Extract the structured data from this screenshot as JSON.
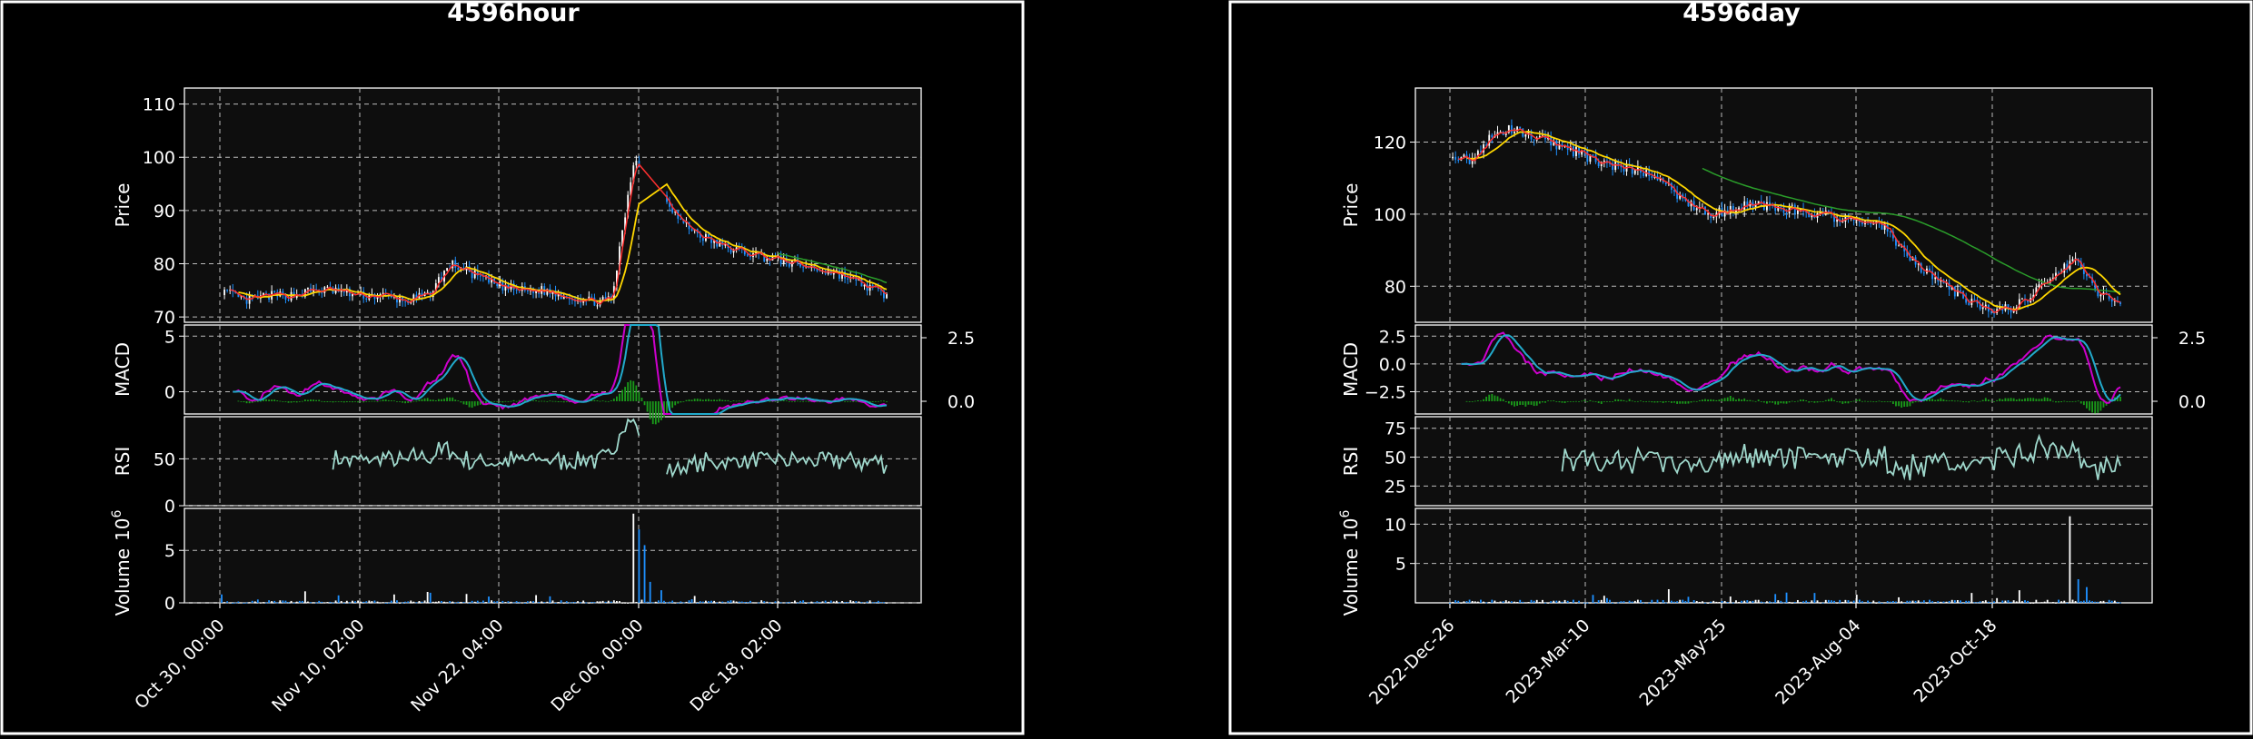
{
  "charts": {
    "left": {
      "title": "4596hour",
      "price_label": "Price",
      "macd_label": "MACD",
      "rsi_label": "RSI",
      "volume_label": "Volume",
      "volume_exp": "10",
      "volume_exp_sup": "6",
      "price_ticks": [
        "70",
        "80",
        "90",
        "100",
        "110"
      ],
      "macd_ticks": [
        "0",
        "5"
      ],
      "macd_right_ticks": [
        "0.0",
        "2.5"
      ],
      "rsi_ticks": [
        "0",
        "50"
      ],
      "volume_ticks": [
        "0",
        "5"
      ],
      "x_ticks": [
        "Oct 30, 00:00",
        "Nov 10, 02:00",
        "Nov 22, 04:00",
        "Dec 06, 00:00",
        "Dec 18, 02:00"
      ]
    },
    "right": {
      "title": "4596day",
      "price_label": "Price",
      "macd_label": "MACD",
      "rsi_label": "RSI",
      "volume_label": "Volume",
      "volume_exp": "10",
      "volume_exp_sup": "6",
      "price_ticks": [
        "80",
        "100",
        "120"
      ],
      "macd_ticks": [
        "−2.5",
        "0.0",
        "2.5"
      ],
      "macd_right_ticks": [
        "0.0",
        "2.5"
      ],
      "rsi_ticks": [
        "25",
        "50",
        "75"
      ],
      "volume_ticks": [
        "5",
        "10"
      ],
      "x_ticks": [
        "2022-Dec-26",
        "2023-Mar-10",
        "2023-May-25",
        "2023-Aug-04",
        "2023-Oct-18"
      ]
    }
  },
  "chart_data": [
    {
      "type": "candlestick",
      "title": "4596hour",
      "ylabel": "Price",
      "ylim": [
        69,
        113
      ],
      "x_ticks": [
        "Oct 30, 00:00",
        "Nov 10, 02:00",
        "Nov 22, 04:00",
        "Dec 06, 00:00",
        "Dec 18, 02:00"
      ],
      "close_series": [
        75,
        73,
        74,
        74,
        75,
        75,
        74,
        74,
        73,
        74,
        80,
        78,
        76,
        75,
        75,
        74,
        73,
        73,
        100,
        95,
        88,
        85,
        83,
        82,
        81,
        80,
        79,
        78,
        76,
        74
      ],
      "moving_averages": [
        "red",
        "yellow",
        "green"
      ],
      "macd": {
        "ylim": [
          -2,
          6
        ],
        "right_ylim": [
          -0.5,
          3
        ]
      },
      "rsi": {
        "ylim": [
          0,
          95
        ]
      },
      "volume": {
        "ylim": [
          0,
          9
        ],
        "unit": "1e6",
        "peaks": [
          8.5,
          7,
          5.5
        ]
      },
      "colors": {
        "up": "#ffffff",
        "down": "#1e90ff",
        "ma_fast": "#ff3030",
        "ma_mid": "#ffd700",
        "ma_slow": "#2a9d2a",
        "macd": "#cc00cc",
        "signal": "#22aacc",
        "hist": "#1a9a1a",
        "rsi": "#9fd8cc"
      }
    },
    {
      "type": "candlestick",
      "title": "4596day",
      "ylabel": "Price",
      "ylim": [
        70,
        135
      ],
      "x_ticks": [
        "2022-Dec-26",
        "2023-Mar-10",
        "2023-May-25",
        "2023-Aug-04",
        "2023-Oct-18"
      ],
      "close_series": [
        117,
        115,
        122,
        124,
        121,
        119,
        117,
        114,
        113,
        112,
        108,
        103,
        100,
        101,
        103,
        102,
        101,
        100,
        99,
        98,
        97,
        90,
        84,
        80,
        76,
        73,
        74,
        78,
        83,
        88,
        78,
        75
      ],
      "moving_averages": [
        "red",
        "yellow",
        "green"
      ],
      "macd": {
        "ylim": [
          -4.5,
          3.5
        ],
        "right_ylim": [
          -0.5,
          3
        ]
      },
      "rsi": {
        "ylim": [
          8,
          85
        ]
      },
      "volume": {
        "ylim": [
          0,
          12
        ],
        "unit": "1e6",
        "peaks": [
          11
        ]
      },
      "colors": {
        "up": "#ffffff",
        "down": "#1e90ff",
        "ma_fast": "#ff3030",
        "ma_mid": "#ffd700",
        "ma_slow": "#2a9d2a",
        "macd": "#cc00cc",
        "signal": "#22aacc",
        "hist": "#1a9a1a",
        "rsi": "#9fd8cc"
      }
    }
  ]
}
